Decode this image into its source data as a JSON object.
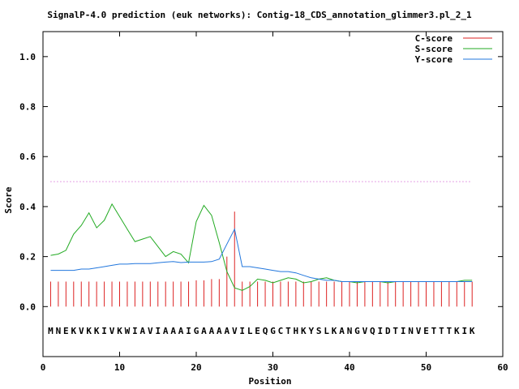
{
  "chart_data": {
    "type": "line",
    "title": "SignalP-4.0 prediction (euk networks): Contig-18_CDS_annotation_glimmer3.pl_2_1",
    "xlabel": "Position",
    "ylabel": "Score",
    "xlim": [
      0,
      60
    ],
    "ylim": [
      -0.2,
      1.1
    ],
    "xticks": [
      "0",
      "10",
      "20",
      "30",
      "40",
      "50",
      "60"
    ],
    "yticks": [
      "0.0",
      "0.2",
      "0.4",
      "0.6",
      "0.8",
      "1.0"
    ],
    "threshold": 0.5,
    "sequence": [
      "M",
      "N",
      "E",
      "K",
      "V",
      "K",
      "K",
      "I",
      "V",
      "K",
      "W",
      "I",
      "A",
      "V",
      "I",
      "A",
      "A",
      "A",
      "I",
      "G",
      "A",
      "A",
      "A",
      "A",
      "V",
      "I",
      "L",
      "E",
      "Q",
      "G",
      "C",
      "T",
      "H",
      "K",
      "Y",
      "S",
      "L",
      "K",
      "A",
      "N",
      "G",
      "V",
      "Q",
      "I",
      "D",
      "T",
      "I",
      "N",
      "V",
      "E",
      "T",
      "T",
      "T",
      "K",
      "I",
      "K"
    ],
    "legend": {
      "position": "top-right",
      "labels": [
        "C-score",
        "S-score",
        "Y-score"
      ]
    },
    "colors": {
      "c": "#dd2222",
      "s": "#22aa22",
      "y": "#2277dd",
      "threshold": "#cc44cc",
      "border": "#000000"
    },
    "series": [
      {
        "name": "C-score",
        "style": "impulses",
        "x_start": 1,
        "values": [
          0.1,
          0.1,
          0.1,
          0.1,
          0.1,
          0.1,
          0.1,
          0.1,
          0.1,
          0.1,
          0.1,
          0.1,
          0.1,
          0.1,
          0.1,
          0.1,
          0.1,
          0.1,
          0.1,
          0.105,
          0.105,
          0.11,
          0.11,
          0.2,
          0.38,
          0.1,
          0.1,
          0.1,
          0.1,
          0.1,
          0.1,
          0.1,
          0.1,
          0.1,
          0.1,
          0.1,
          0.1,
          0.1,
          0.1,
          0.1,
          0.1,
          0.1,
          0.1,
          0.1,
          0.1,
          0.1,
          0.1,
          0.1,
          0.1,
          0.1,
          0.1,
          0.1,
          0.1,
          0.1,
          0.1,
          0.1
        ]
      },
      {
        "name": "S-score",
        "style": "line",
        "x_start": 1,
        "values": [
          0.205,
          0.21,
          0.225,
          0.29,
          0.325,
          0.375,
          0.315,
          0.345,
          0.41,
          0.36,
          0.31,
          0.26,
          0.27,
          0.28,
          0.24,
          0.2,
          0.22,
          0.21,
          0.175,
          0.34,
          0.405,
          0.365,
          0.255,
          0.14,
          0.075,
          0.065,
          0.08,
          0.11,
          0.105,
          0.095,
          0.105,
          0.115,
          0.11,
          0.095,
          0.1,
          0.11,
          0.115,
          0.105,
          0.1,
          0.1,
          0.095,
          0.1,
          0.1,
          0.1,
          0.095,
          0.1,
          0.1,
          0.1,
          0.1,
          0.1,
          0.1,
          0.1,
          0.1,
          0.1,
          0.105,
          0.105
        ]
      },
      {
        "name": "Y-score",
        "style": "line",
        "x_start": 1,
        "values": [
          0.145,
          0.145,
          0.145,
          0.145,
          0.15,
          0.15,
          0.155,
          0.16,
          0.165,
          0.17,
          0.17,
          0.172,
          0.172,
          0.172,
          0.175,
          0.178,
          0.18,
          0.176,
          0.178,
          0.178,
          0.178,
          0.18,
          0.19,
          0.25,
          0.31,
          0.16,
          0.16,
          0.155,
          0.15,
          0.145,
          0.14,
          0.14,
          0.135,
          0.125,
          0.115,
          0.11,
          0.105,
          0.105,
          0.1,
          0.1,
          0.1,
          0.1,
          0.1,
          0.1,
          0.1,
          0.1,
          0.1,
          0.1,
          0.1,
          0.1,
          0.1,
          0.1,
          0.1,
          0.1,
          0.1,
          0.1
        ]
      }
    ]
  }
}
